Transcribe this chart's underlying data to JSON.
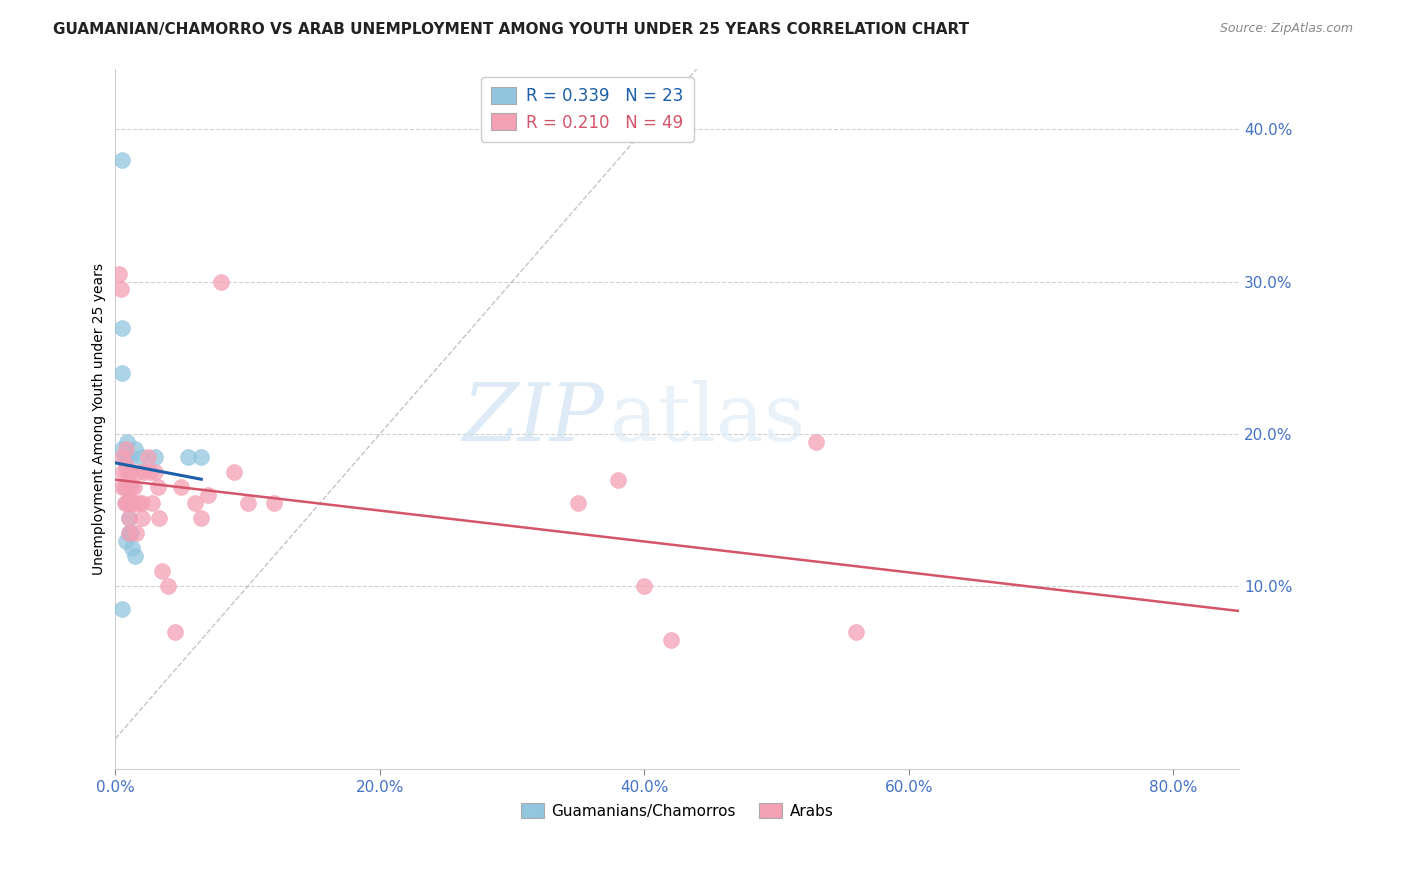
{
  "title": "GUAMANIAN/CHAMORRO VS ARAB UNEMPLOYMENT AMONG YOUTH UNDER 25 YEARS CORRELATION CHART",
  "source": "Source: ZipAtlas.com",
  "ylabel": "Unemployment Among Youth under 25 years",
  "xlabel_ticks": [
    "0.0%",
    "20.0%",
    "40.0%",
    "60.0%",
    "80.0%"
  ],
  "xlabel_vals": [
    0.0,
    0.2,
    0.4,
    0.6,
    0.8
  ],
  "ylabel_right_ticks": [
    "10.0%",
    "20.0%",
    "30.0%",
    "40.0%"
  ],
  "ylabel_right_vals": [
    0.1,
    0.2,
    0.3,
    0.4
  ],
  "xlim": [
    0.0,
    0.85
  ],
  "ylim": [
    -0.02,
    0.44
  ],
  "legend_blue_R": "0.339",
  "legend_blue_N": "23",
  "legend_pink_R": "0.210",
  "legend_pink_N": "49",
  "blue_color": "#92c5de",
  "pink_color": "#f4a0b5",
  "blue_line_color": "#1a5fa8",
  "pink_line_color": "#d4546a",
  "watermark_color": "#ddeeff",
  "blue_x": [
    0.005,
    0.005,
    0.005,
    0.005,
    0.005,
    0.007,
    0.007,
    0.008,
    0.008,
    0.009,
    0.009,
    0.01,
    0.01,
    0.01,
    0.012,
    0.012,
    0.013,
    0.015,
    0.015,
    0.02,
    0.03,
    0.055,
    0.065
  ],
  "blue_y": [
    0.38,
    0.27,
    0.24,
    0.19,
    0.085,
    0.185,
    0.165,
    0.155,
    0.13,
    0.195,
    0.185,
    0.155,
    0.145,
    0.135,
    0.185,
    0.135,
    0.125,
    0.19,
    0.12,
    0.185,
    0.185,
    0.185,
    0.185
  ],
  "pink_x": [
    0.003,
    0.004,
    0.005,
    0.005,
    0.006,
    0.007,
    0.007,
    0.008,
    0.008,
    0.009,
    0.009,
    0.01,
    0.01,
    0.01,
    0.01,
    0.011,
    0.012,
    0.013,
    0.014,
    0.015,
    0.016,
    0.017,
    0.018,
    0.02,
    0.02,
    0.022,
    0.025,
    0.026,
    0.028,
    0.03,
    0.032,
    0.033,
    0.035,
    0.04,
    0.045,
    0.05,
    0.06,
    0.065,
    0.07,
    0.08,
    0.09,
    0.1,
    0.12,
    0.35,
    0.38,
    0.4,
    0.42,
    0.53,
    0.56
  ],
  "pink_y": [
    0.305,
    0.295,
    0.185,
    0.165,
    0.175,
    0.165,
    0.155,
    0.19,
    0.18,
    0.175,
    0.155,
    0.165,
    0.155,
    0.145,
    0.135,
    0.175,
    0.165,
    0.155,
    0.165,
    0.155,
    0.135,
    0.175,
    0.155,
    0.155,
    0.145,
    0.175,
    0.185,
    0.175,
    0.155,
    0.175,
    0.165,
    0.145,
    0.11,
    0.1,
    0.07,
    0.165,
    0.155,
    0.145,
    0.16,
    0.3,
    0.175,
    0.155,
    0.155,
    0.155,
    0.17,
    0.1,
    0.065,
    0.195,
    0.07
  ]
}
